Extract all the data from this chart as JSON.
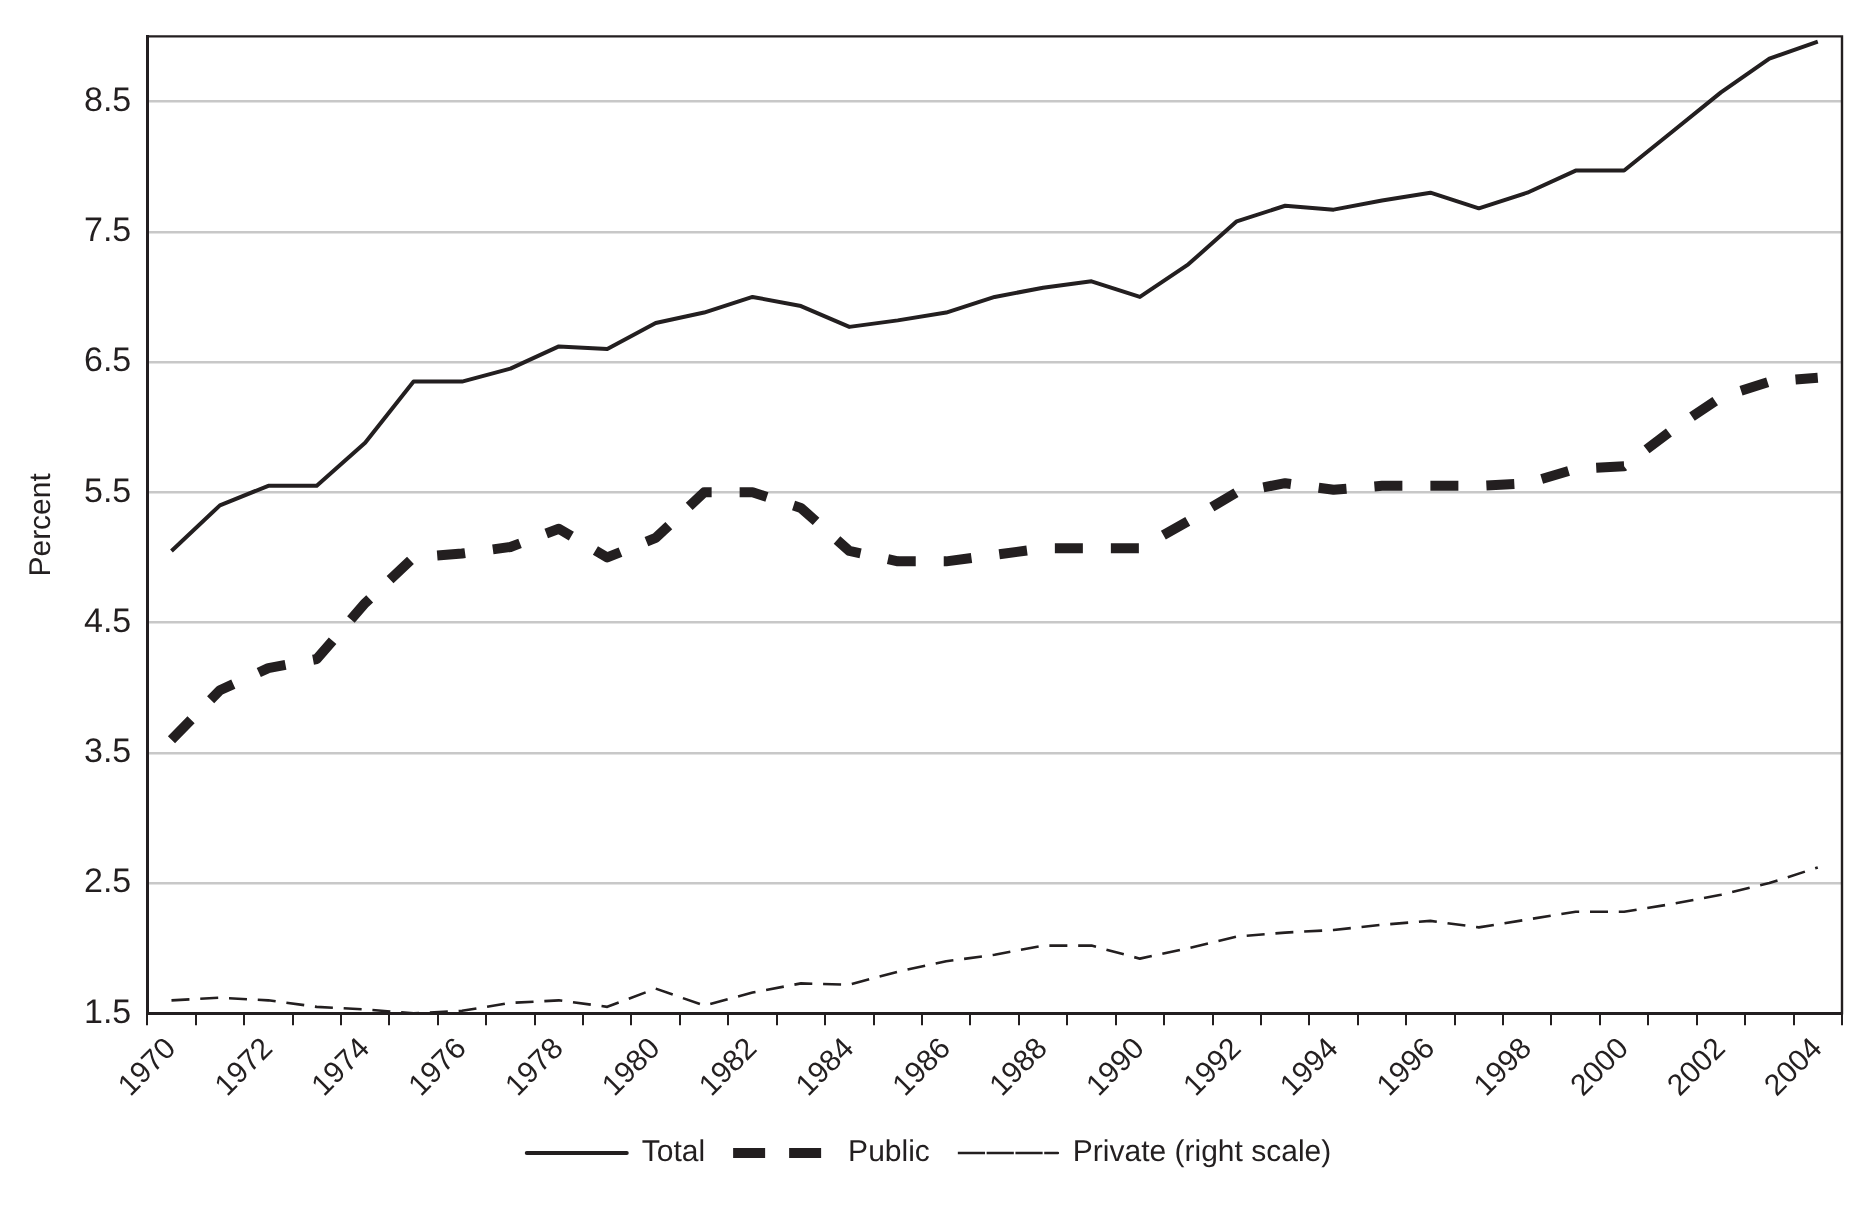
{
  "chart_data": {
    "type": "line",
    "ylabel": "Percent",
    "categories": [
      "1970",
      null,
      "1972",
      null,
      "1974",
      null,
      "1976",
      null,
      "1978",
      null,
      "1980",
      null,
      "1982",
      null,
      "1984",
      null,
      "1986",
      null,
      "1988",
      null,
      "1990",
      null,
      "1992",
      null,
      "1994",
      null,
      "1996",
      null,
      "1998",
      null,
      "2000",
      null,
      "2002",
      null,
      "2004"
    ],
    "series": [
      {
        "name": "Total",
        "color": "#231f20",
        "line_style": "solid",
        "values": [
          5.05,
          5.4,
          5.55,
          5.55,
          5.88,
          6.35,
          6.35,
          6.45,
          6.62,
          6.6,
          6.8,
          6.88,
          7.0,
          6.93,
          6.77,
          6.82,
          6.88,
          7.0,
          7.07,
          7.12,
          7.0,
          7.25,
          7.58,
          7.7,
          7.67,
          7.74,
          7.8,
          7.68,
          7.8,
          7.97,
          7.97,
          8.27,
          8.57,
          8.83,
          8.96
        ]
      },
      {
        "name": "Public",
        "color": "#231f20",
        "line_style": "dashed",
        "values": [
          3.6,
          3.98,
          4.15,
          4.22,
          4.65,
          5.0,
          5.03,
          5.08,
          5.22,
          5.0,
          5.15,
          5.5,
          5.5,
          5.38,
          5.05,
          4.97,
          4.97,
          5.02,
          5.07,
          5.07,
          5.07,
          5.28,
          5.5,
          5.57,
          5.52,
          5.55,
          5.55,
          5.55,
          5.57,
          5.68,
          5.7,
          5.98,
          6.23,
          6.35,
          6.38
        ]
      },
      {
        "name": "Private (right scale)",
        "color": "#231f20",
        "line_style": "dashed",
        "values": [
          1.6,
          1.62,
          1.6,
          1.55,
          1.53,
          1.5,
          1.52,
          1.58,
          1.6,
          1.55,
          1.69,
          1.56,
          1.66,
          1.73,
          1.72,
          1.82,
          1.9,
          1.95,
          2.02,
          2.02,
          1.92,
          2.0,
          2.09,
          2.12,
          2.14,
          2.18,
          2.21,
          2.16,
          2.22,
          2.28,
          2.28,
          2.34,
          2.41,
          2.5,
          2.62
        ]
      }
    ],
    "ylim": [
      1.5,
      9.0
    ],
    "yticks": [
      1.5,
      2.5,
      3.5,
      4.5,
      5.5,
      6.5,
      7.5,
      8.5
    ],
    "grid": "y",
    "legend": "bottom",
    "marker": "none"
  }
}
